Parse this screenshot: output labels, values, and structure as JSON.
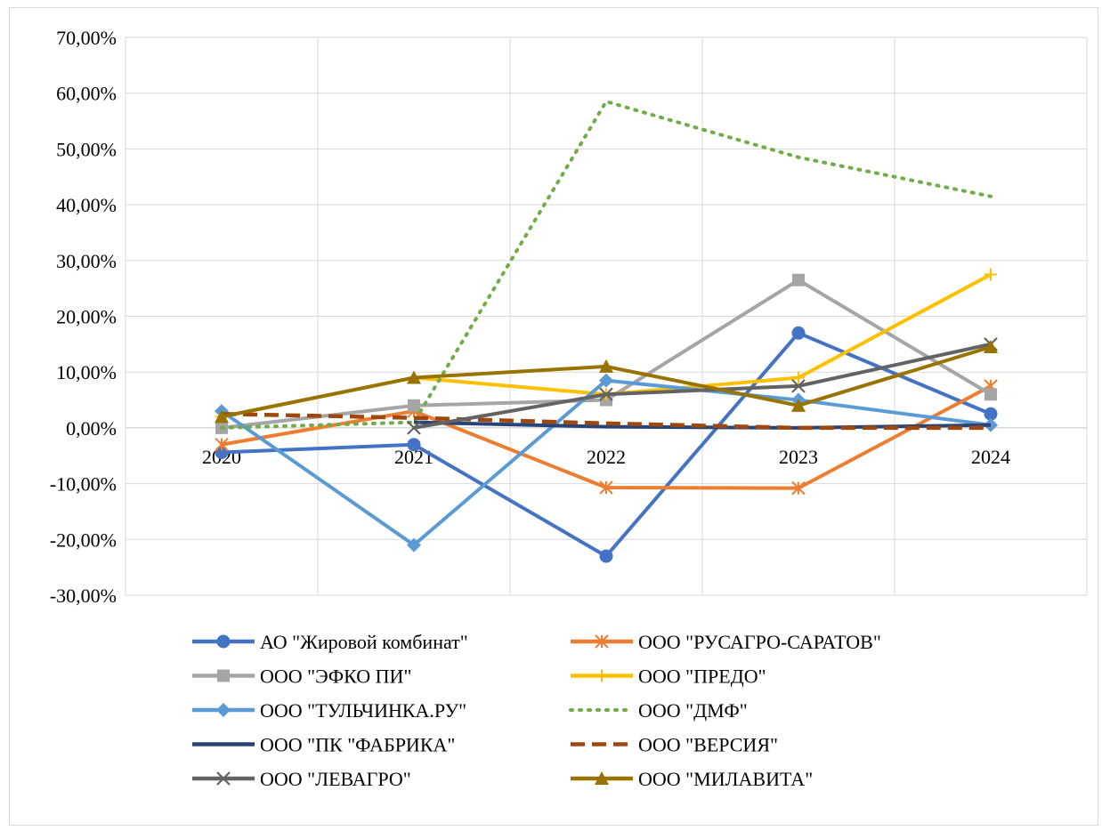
{
  "chart_data": {
    "type": "line",
    "title": "",
    "xlabel": "",
    "ylabel": "",
    "categories": [
      "2020",
      "2021",
      "2022",
      "2023",
      "2024"
    ],
    "y_ticks": [
      "70,00%",
      "60,00%",
      "50,00%",
      "40,00%",
      "30,00%",
      "20,00%",
      "10,00%",
      "0,00%",
      "-10,00%",
      "-20,00%",
      "-30,00%"
    ],
    "ylim": [
      -30,
      70
    ],
    "y_unit": "%",
    "grid": true,
    "legend_position": "bottom",
    "series": [
      {
        "name": "АО \"Жировой комбинат\"",
        "color": "#4472C4",
        "dash": "solid",
        "marker": "circle",
        "values": [
          -4.4,
          -3.0,
          -23.0,
          17.0,
          2.5
        ]
      },
      {
        "name": "ООО \"РУСАГРО-САРАТОВ\"",
        "color": "#ED7D31",
        "dash": "solid",
        "marker": "star",
        "values": [
          -3.0,
          3.0,
          -10.7,
          -10.8,
          7.5
        ]
      },
      {
        "name": "ООО \"ЭФКО ПИ\"",
        "color": "#A5A5A5",
        "dash": "solid",
        "marker": "square",
        "values": [
          0.0,
          4.0,
          5.0,
          26.5,
          6.0
        ]
      },
      {
        "name": "ООО \"ПРЕДО\"",
        "color": "#FFC000",
        "dash": "solid",
        "marker": "plus",
        "values": [
          2.0,
          9.0,
          6.0,
          9.0,
          27.5
        ]
      },
      {
        "name": "ООО \"ТУЛЬЧИНКА.РУ\"",
        "color": "#5B9BD5",
        "dash": "solid",
        "marker": "diamond",
        "values": [
          3.0,
          -21.0,
          8.5,
          5.0,
          0.5
        ]
      },
      {
        "name": "ООО \"ДМФ\"",
        "color": "#70AD47",
        "dash": "dot",
        "marker": "none",
        "values": [
          0.0,
          1.0,
          58.5,
          48.5,
          41.5
        ]
      },
      {
        "name": "ООО \"ПК \"ФАБРИКА\"",
        "color": "#264478",
        "dash": "solid",
        "marker": "none",
        "values": [
          null,
          1.0,
          0.2,
          0.0,
          0.5
        ]
      },
      {
        "name": "ООО \"ВЕРСИЯ\"",
        "color": "#9E480E",
        "dash": "dash",
        "marker": "none",
        "values": [
          2.5,
          1.8,
          0.8,
          0.0,
          0.0
        ]
      },
      {
        "name": "ООО \"ЛЕВАГРО\"",
        "color": "#636363",
        "dash": "solid",
        "marker": "x",
        "values": [
          null,
          0.0,
          6.0,
          7.5,
          15.0
        ]
      },
      {
        "name": "ООО \"МИЛАВИТА\"",
        "color": "#997300",
        "dash": "solid",
        "marker": "triangle",
        "values": [
          2.0,
          9.0,
          11.0,
          4.0,
          14.5
        ]
      }
    ]
  }
}
